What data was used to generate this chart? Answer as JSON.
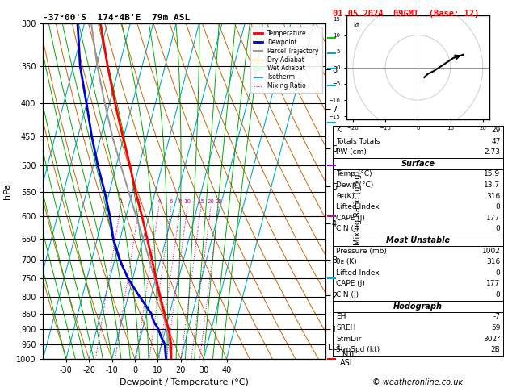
{
  "title_left": "-37°00'S  174°4B'E  79m ASL",
  "title_right": "01.05.2024  09GMT  (Base: 12)",
  "xlabel": "Dewpoint / Temperature (°C)",
  "pressure_levels": [
    300,
    350,
    400,
    450,
    500,
    550,
    600,
    650,
    700,
    750,
    800,
    850,
    900,
    950,
    1000
  ],
  "temp_ticks": [
    -30,
    -20,
    -10,
    0,
    10,
    20,
    30,
    40
  ],
  "skew": 38.0,
  "temperature_profile": {
    "pressure": [
      1002,
      975,
      950,
      925,
      900,
      875,
      850,
      800,
      750,
      700,
      650,
      600,
      550,
      500,
      450,
      400,
      350,
      300
    ],
    "temp": [
      15.9,
      15.0,
      14.2,
      12.8,
      11.5,
      9.5,
      7.8,
      4.0,
      0.2,
      -3.8,
      -8.2,
      -13.0,
      -18.5,
      -24.0,
      -30.5,
      -37.5,
      -45.0,
      -53.0
    ]
  },
  "dewpoint_profile": {
    "pressure": [
      1002,
      975,
      950,
      925,
      900,
      875,
      850,
      800,
      750,
      700,
      650,
      600,
      550,
      500,
      450,
      400,
      350,
      300
    ],
    "temp": [
      13.7,
      12.5,
      11.5,
      9.0,
      7.0,
      4.0,
      2.0,
      -5.0,
      -12.0,
      -18.0,
      -23.0,
      -27.0,
      -32.0,
      -38.0,
      -44.0,
      -50.0,
      -57.0,
      -63.0
    ]
  },
  "parcel_profile": {
    "pressure": [
      1002,
      975,
      950,
      925,
      900,
      875,
      850,
      800,
      750,
      700,
      650,
      600,
      550,
      500,
      450,
      400,
      350,
      300
    ],
    "temp": [
      15.9,
      14.5,
      13.5,
      12.0,
      10.5,
      9.0,
      7.2,
      3.5,
      -0.5,
      -5.0,
      -10.0,
      -15.5,
      -21.5,
      -28.0,
      -35.0,
      -42.0,
      -49.5,
      -57.0
    ]
  },
  "lcl_pressure": 960,
  "km_ticks": {
    "km": [
      1,
      2,
      3,
      4,
      5,
      6,
      7,
      8
    ],
    "pressure": [
      898,
      795,
      701,
      616,
      539,
      470,
      408,
      354
    ]
  },
  "mixing_ratio_vals": [
    1,
    2,
    4,
    6,
    8,
    10,
    15,
    20,
    25
  ],
  "sounding_data": {
    "K": "29",
    "TotTot": "47",
    "PW": "2.73",
    "surf_temp": "15.9",
    "surf_dewp": "13.7",
    "surf_theta_e": "316",
    "surf_lifted_index": "0",
    "surf_cape": "177",
    "surf_cin": "0",
    "mu_pressure": "1002",
    "mu_theta_e": "316",
    "mu_lifted_index": "0",
    "mu_cape": "177",
    "mu_cin": "0",
    "hodo_EH": "-7",
    "hodo_SREH": "59",
    "hodo_StmDir": "302°",
    "hodo_StmSpd": "2B"
  },
  "colors": {
    "temperature": "#ff0000",
    "dewpoint": "#0000cc",
    "parcel": "#999999",
    "dry_adiabat": "#cc6600",
    "wet_adiabat": "#00aa00",
    "isotherm": "#00aacc",
    "mixing_ratio": "#cc00aa",
    "background": "#ffffff"
  },
  "copyright": "© weatheronline.co.uk",
  "pmin": 300,
  "pmax": 1000,
  "xmin": -40,
  "xmax": 45
}
